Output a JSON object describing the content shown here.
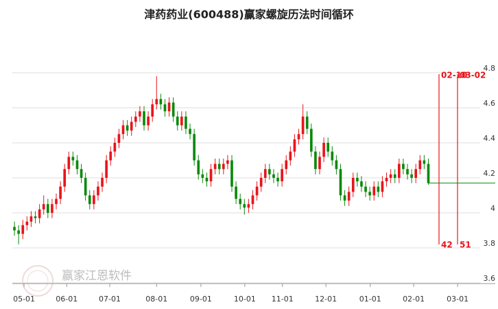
{
  "chart_data": {
    "type": "candlestick",
    "title": "津药药业(600488)赢家螺旋历法时间循环",
    "watermark": "赢家江恩软件",
    "categories": [
      null,
      null,
      null,
      null,
      null,
      null,
      null,
      null,
      null,
      null,
      null,
      null,
      null,
      null,
      null,
      null,
      null,
      null,
      null,
      null,
      null,
      null,
      null,
      null,
      null,
      null,
      null,
      null,
      null,
      null,
      null,
      null,
      null,
      null,
      null,
      null,
      null,
      null,
      null,
      null,
      null,
      null,
      null,
      null,
      null,
      null,
      null,
      null,
      null,
      null,
      null,
      null,
      null,
      null,
      null,
      null,
      null,
      null,
      null,
      null,
      null,
      null,
      null,
      null,
      null,
      null,
      null,
      null,
      null,
      null,
      null,
      null,
      null,
      null,
      null,
      null,
      null,
      null,
      null,
      null,
      null,
      null,
      null,
      null,
      null,
      null,
      null,
      null,
      null,
      null,
      null,
      null,
      null,
      null,
      null,
      null,
      null,
      null,
      null,
      null
    ],
    "open": [
      3.92,
      3.9,
      3.88,
      3.93,
      3.95,
      3.98,
      3.97,
      4.02,
      4.05,
      4.0,
      4.05,
      4.08,
      4.15,
      4.25,
      4.32,
      4.3,
      4.25,
      4.2,
      4.1,
      4.05,
      4.1,
      4.15,
      4.2,
      4.3,
      4.35,
      4.4,
      4.45,
      4.5,
      4.47,
      4.52,
      4.55,
      4.58,
      4.5,
      4.55,
      4.62,
      4.65,
      4.62,
      4.58,
      4.63,
      4.55,
      4.5,
      4.55,
      4.48,
      4.45,
      4.3,
      4.22,
      4.2,
      4.18,
      4.25,
      4.28,
      4.25,
      4.28,
      4.3,
      4.15,
      4.08,
      4.05,
      4.03,
      4.05,
      4.1,
      4.15,
      4.2,
      4.25,
      4.22,
      4.2,
      4.18,
      4.25,
      4.3,
      4.35,
      4.42,
      4.45,
      4.55,
      4.48,
      4.35,
      4.25,
      4.32,
      4.4,
      4.35,
      4.3,
      4.25,
      4.1,
      4.07,
      4.12,
      4.2,
      4.18,
      4.15,
      4.12,
      4.1,
      4.15,
      4.12,
      4.18,
      4.2,
      4.22,
      4.2,
      4.28,
      4.25,
      4.22,
      4.2,
      4.25,
      4.3,
      4.28
    ],
    "close": [
      3.9,
      3.88,
      3.93,
      3.95,
      3.98,
      3.97,
      4.02,
      4.05,
      4.0,
      4.05,
      4.08,
      4.15,
      4.25,
      4.32,
      4.3,
      4.25,
      4.2,
      4.1,
      4.05,
      4.1,
      4.15,
      4.2,
      4.3,
      4.35,
      4.4,
      4.45,
      4.5,
      4.47,
      4.52,
      4.55,
      4.58,
      4.5,
      4.55,
      4.62,
      4.65,
      4.62,
      4.58,
      4.63,
      4.55,
      4.5,
      4.55,
      4.48,
      4.45,
      4.3,
      4.22,
      4.2,
      4.18,
      4.25,
      4.28,
      4.25,
      4.28,
      4.3,
      4.15,
      4.08,
      4.05,
      4.03,
      4.05,
      4.1,
      4.15,
      4.2,
      4.25,
      4.22,
      4.2,
      4.18,
      4.25,
      4.3,
      4.35,
      4.42,
      4.45,
      4.55,
      4.48,
      4.35,
      4.25,
      4.32,
      4.4,
      4.35,
      4.3,
      4.25,
      4.1,
      4.07,
      4.12,
      4.2,
      4.18,
      4.15,
      4.12,
      4.1,
      4.15,
      4.12,
      4.18,
      4.2,
      4.22,
      4.2,
      4.28,
      4.25,
      4.22,
      4.2,
      4.25,
      4.3,
      4.28,
      4.17
    ],
    "high": [
      3.95,
      3.93,
      3.96,
      3.98,
      4.01,
      4.01,
      4.05,
      4.1,
      4.08,
      4.08,
      4.11,
      4.18,
      4.28,
      4.35,
      4.35,
      4.33,
      4.28,
      4.23,
      4.13,
      4.13,
      4.18,
      4.23,
      4.33,
      4.38,
      4.43,
      4.48,
      4.53,
      4.53,
      4.55,
      4.58,
      4.61,
      4.61,
      4.58,
      4.65,
      4.78,
      4.68,
      4.65,
      4.66,
      4.66,
      4.58,
      4.58,
      4.58,
      4.51,
      4.48,
      4.33,
      4.25,
      4.23,
      4.28,
      4.31,
      4.31,
      4.31,
      4.33,
      4.33,
      4.18,
      4.11,
      4.08,
      4.08,
      4.13,
      4.18,
      4.23,
      4.28,
      4.28,
      4.25,
      4.23,
      4.28,
      4.33,
      4.38,
      4.45,
      4.48,
      4.62,
      4.58,
      4.51,
      4.38,
      4.35,
      4.43,
      4.43,
      4.38,
      4.33,
      4.28,
      4.13,
      4.15,
      4.23,
      4.23,
      4.21,
      4.18,
      4.15,
      4.18,
      4.18,
      4.21,
      4.23,
      4.25,
      4.25,
      4.31,
      4.31,
      4.28,
      4.25,
      4.28,
      4.33,
      4.33,
      4.31
    ],
    "low": [
      3.87,
      3.82,
      3.85,
      3.9,
      3.92,
      3.94,
      3.94,
      3.99,
      3.97,
      3.97,
      4.02,
      4.05,
      4.12,
      4.22,
      4.27,
      4.22,
      4.17,
      4.07,
      4.02,
      4.02,
      4.07,
      4.12,
      4.17,
      4.27,
      4.32,
      4.37,
      4.42,
      4.44,
      4.44,
      4.49,
      4.52,
      4.47,
      4.47,
      4.52,
      4.59,
      4.59,
      4.55,
      4.55,
      4.52,
      4.47,
      4.47,
      4.45,
      4.42,
      4.27,
      4.19,
      4.17,
      4.15,
      4.15,
      4.22,
      4.22,
      4.22,
      4.25,
      4.12,
      4.05,
      4.02,
      3.99,
      4.0,
      4.02,
      4.07,
      4.12,
      4.17,
      4.19,
      4.17,
      4.15,
      4.15,
      4.22,
      4.27,
      4.32,
      4.39,
      4.42,
      4.45,
      4.32,
      4.22,
      4.22,
      4.29,
      4.32,
      4.27,
      4.22,
      4.07,
      4.04,
      4.04,
      4.09,
      4.15,
      4.12,
      4.09,
      4.07,
      4.07,
      4.09,
      4.09,
      4.15,
      4.17,
      4.17,
      4.17,
      4.22,
      4.19,
      4.17,
      4.17,
      4.22,
      4.25,
      4.16
    ],
    "up_color": "#e8141b",
    "down_color": "#0a8a0a",
    "reference_line": 4.17,
    "cycle_lines": [
      {
        "date": "02-10",
        "count": 42
      },
      {
        "date": "03-02",
        "count": 51
      }
    ],
    "cycle_color": "#e8141b",
    "xticks": [
      {
        "value": 2.3,
        "label": "05-01"
      },
      {
        "value": 12.5,
        "label": "06-01"
      },
      {
        "value": 22.8,
        "label": "07-01"
      },
      {
        "value": 34,
        "label": "08-01"
      },
      {
        "value": 44.6,
        "label": "09-01"
      },
      {
        "value": 55.1,
        "label": "10-01"
      },
      {
        "value": 64.1,
        "label": "11-01"
      },
      {
        "value": 74.5,
        "label": "12-01"
      },
      {
        "value": 85.1,
        "label": "01-01"
      },
      {
        "value": 95.5,
        "label": "02-01"
      },
      {
        "value": 106,
        "label": "03-01"
      }
    ],
    "xlim": [
      -0.5,
      115
    ],
    "ylim": [
      3.6,
      4.8
    ],
    "yticks": [
      3.6,
      3.8,
      4,
      4.2,
      4.4,
      4.6,
      4.8
    ],
    "grid": true
  }
}
